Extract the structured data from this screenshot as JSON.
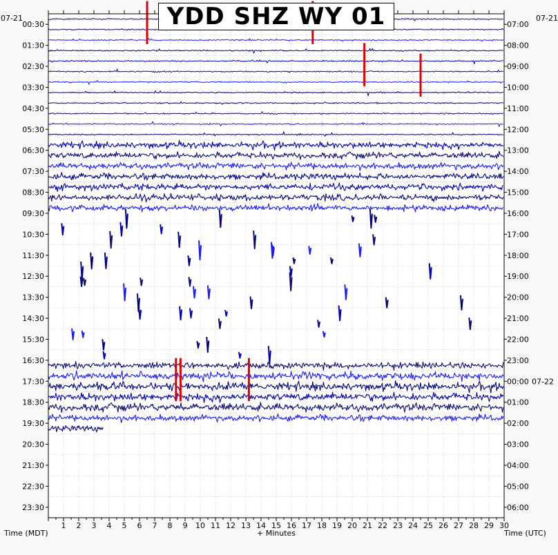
{
  "chart_data": {
    "type": "helicorder",
    "title": "YDD SHZ WY 01",
    "left_date": "07-21",
    "right_date_start": "07-21",
    "right_date_rollover": "07-22",
    "xlabel": "+ Minutes",
    "left_axis_label": "Time (MDT)",
    "right_axis_label": "Time (UTC)",
    "x_ticks": [
      "1",
      "2",
      "3",
      "4",
      "5",
      "6",
      "7",
      "8",
      "9",
      "10",
      "11",
      "12",
      "13",
      "14",
      "15",
      "16",
      "17",
      "18",
      "19",
      "20",
      "21",
      "22",
      "23",
      "24",
      "25",
      "26",
      "27",
      "28",
      "29",
      "30"
    ],
    "xlim": [
      0,
      30
    ],
    "left_ticks": [
      "00:30",
      "01:30",
      "02:30",
      "03:30",
      "04:30",
      "05:30",
      "06:30",
      "07:30",
      "08:30",
      "09:30",
      "10:30",
      "11:30",
      "12:30",
      "13:30",
      "14:30",
      "15:30",
      "16:30",
      "17:30",
      "18:30",
      "19:30",
      "20:30",
      "21:30",
      "22:30",
      "23:30"
    ],
    "right_ticks": [
      "07:00",
      "08:00",
      "09:00",
      "10:00",
      "11:00",
      "12:00",
      "13:00",
      "14:00",
      "15:00",
      "16:00",
      "17:00",
      "18:00",
      "19:00",
      "20:00",
      "21:00",
      "22:00",
      "23:00",
      "00:00",
      "01:00",
      "02:00",
      "03:00",
      "04:00",
      "05:00",
      "06:00"
    ],
    "rows_per_hour": 2,
    "minutes_per_row": 30,
    "trace_colors": [
      "#0000aa",
      "#0a0a70",
      "#1a1aff",
      "#00007a"
    ],
    "event_color": "#e00000",
    "activity": [
      {
        "from_hour": 0,
        "to_hour": 6,
        "level": "quiet"
      },
      {
        "from_hour": 6,
        "to_hour": 9.5,
        "level": "noisy"
      },
      {
        "from_hour": 9.5,
        "to_hour": 16.5,
        "level": "sparse"
      },
      {
        "from_hour": 16.5,
        "to_hour": 20,
        "level": "noisy"
      },
      {
        "from_hour": 20,
        "to_hour": 24,
        "level": "empty"
      }
    ],
    "data_end": {
      "row": 39,
      "minute": 3.6
    },
    "events": [
      {
        "row": 0,
        "minute": 6.5,
        "amplitude": "large",
        "color": "#e00000"
      },
      {
        "row": 0,
        "minute": 17.4,
        "amplitude": "large",
        "color": "#e00000"
      },
      {
        "row": 4,
        "minute": 20.8,
        "amplitude": "large",
        "color": "#e00000"
      },
      {
        "row": 5,
        "minute": 24.5,
        "amplitude": "large",
        "color": "#e00000"
      },
      {
        "row": 34,
        "minute": 8.4,
        "amplitude": "large",
        "color": "#e00000"
      },
      {
        "row": 34,
        "minute": 8.7,
        "amplitude": "large",
        "color": "#e00000"
      },
      {
        "row": 34,
        "minute": 13.2,
        "amplitude": "large",
        "color": "#e00000"
      }
    ]
  }
}
